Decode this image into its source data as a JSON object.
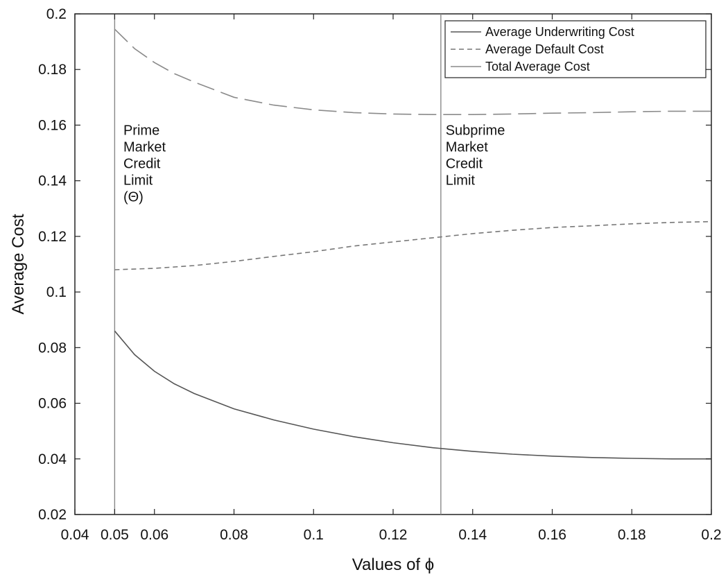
{
  "chart_data": {
    "type": "line",
    "xlabel": "Values of ϕ",
    "ylabel": "Average Cost",
    "xlim": [
      0.04,
      0.2
    ],
    "ylim": [
      0.02,
      0.2
    ],
    "xticks": [
      0.04,
      0.05,
      0.06,
      0.08,
      0.1,
      0.12,
      0.14,
      0.16,
      0.18,
      0.2
    ],
    "xtick_labels": [
      "0.04",
      "0.05",
      "0.06",
      "0.08",
      "0.1",
      "0.12",
      "0.14",
      "0.16",
      "0.18",
      "0.2"
    ],
    "yticks": [
      0.02,
      0.04,
      0.06,
      0.08,
      0.1,
      0.12,
      0.14,
      0.16,
      0.18,
      0.2
    ],
    "ytick_labels": [
      "0.02",
      "0.04",
      "0.06",
      "0.08",
      "0.1",
      "0.12",
      "0.14",
      "0.16",
      "0.18",
      "0.2"
    ],
    "grid": false,
    "legend_position": "top-right",
    "series": [
      {
        "name": "Average Underwriting Cost",
        "style": "solid",
        "color": "#555555",
        "x": [
          0.05,
          0.055,
          0.06,
          0.065,
          0.07,
          0.08,
          0.09,
          0.1,
          0.11,
          0.12,
          0.13,
          0.14,
          0.15,
          0.16,
          0.17,
          0.18,
          0.19,
          0.2
        ],
        "y": [
          0.086,
          0.0775,
          0.0715,
          0.067,
          0.0635,
          0.058,
          0.054,
          0.0507,
          0.048,
          0.0458,
          0.044,
          0.0427,
          0.0417,
          0.041,
          0.0405,
          0.0402,
          0.04,
          0.04
        ]
      },
      {
        "name": "Average Default Cost",
        "style": "dashed",
        "color": "#777777",
        "x": [
          0.05,
          0.06,
          0.07,
          0.08,
          0.09,
          0.1,
          0.11,
          0.12,
          0.13,
          0.14,
          0.15,
          0.16,
          0.17,
          0.18,
          0.19,
          0.2
        ],
        "y": [
          0.108,
          0.1085,
          0.1095,
          0.111,
          0.1128,
          0.1145,
          0.1165,
          0.118,
          0.1195,
          0.121,
          0.1222,
          0.1232,
          0.1238,
          0.1245,
          0.125,
          0.1253
        ]
      },
      {
        "name": "Total Average Cost",
        "style": "long-dash",
        "color": "#8a8a8a",
        "x": [
          0.05,
          0.055,
          0.06,
          0.065,
          0.07,
          0.08,
          0.09,
          0.1,
          0.11,
          0.12,
          0.13,
          0.14,
          0.15,
          0.16,
          0.17,
          0.18,
          0.19,
          0.2
        ],
        "y": [
          0.1945,
          0.1875,
          0.1825,
          0.1785,
          0.1755,
          0.17,
          0.1672,
          0.1655,
          0.1645,
          0.164,
          0.1638,
          0.1638,
          0.164,
          0.1643,
          0.1645,
          0.1648,
          0.165,
          0.165
        ]
      }
    ],
    "vertical_lines": [
      {
        "x": 0.05,
        "color": "#888888"
      },
      {
        "x": 0.132,
        "color": "#888888"
      }
    ],
    "annotations": [
      {
        "x": 0.0515,
        "y": 0.155,
        "lines": [
          "Prime",
          "Market",
          "Credit",
          "Limit",
          "(Θ)"
        ]
      },
      {
        "x": 0.1325,
        "y": 0.155,
        "lines": [
          "Subprime",
          "Market",
          "Credit",
          "Limit"
        ]
      }
    ]
  }
}
